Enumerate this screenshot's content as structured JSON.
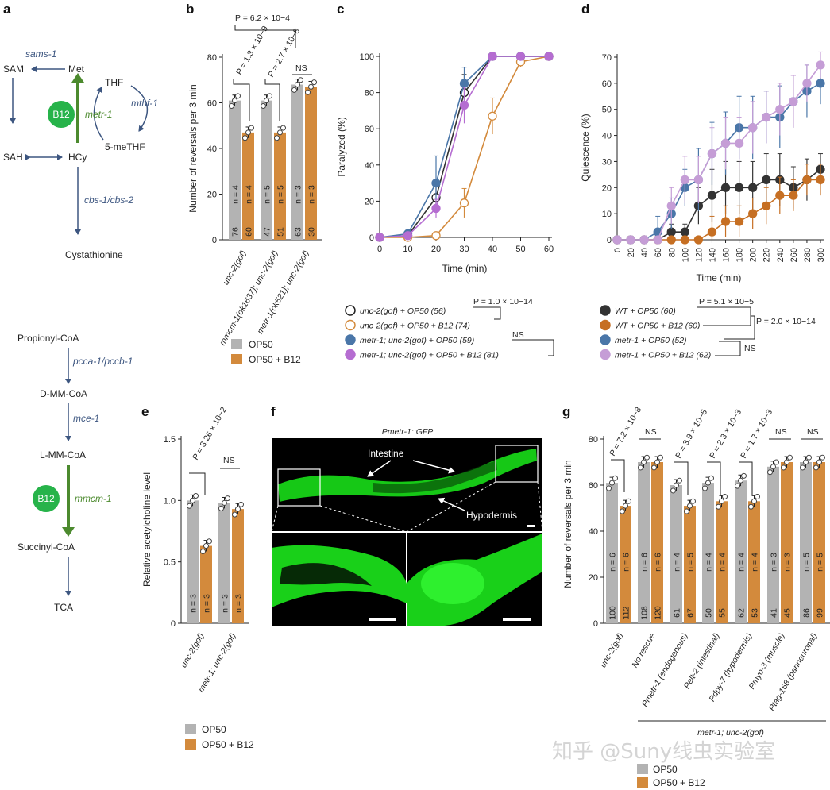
{
  "colors": {
    "grey": "#b3b3b3",
    "orange": "#d38a3c",
    "blue": "#4a76a8",
    "purple": "#b56dd1",
    "purple_light": "#c59dd6",
    "dark": "#333333",
    "green": "#27b34a",
    "arrow_green": "#4c8a2e",
    "arrow_blue": "#3d5680",
    "gfp": "#1ee61e"
  },
  "panel_a": {
    "letter": "a",
    "top": {
      "sams1": "sams-1",
      "sam": "SAM",
      "met": "Met",
      "thf": "THF",
      "mthf1": "mthf-1",
      "b12": "B12",
      "metr1": "metr-1",
      "sah": "SAH",
      "hcy": "HCy",
      "meTHF": "5-meTHF",
      "cbs": "cbs-1/cbs-2",
      "cystathionine": "Cystathionine"
    },
    "bottom": {
      "propionyl": "Propionyl-CoA",
      "pcca": "pcca-1/pccb-1",
      "dmm": "D-MM-CoA",
      "mce1": "mce-1",
      "lmm": "L-MM-CoA",
      "b12": "B12",
      "mmcm1": "mmcm-1",
      "succinyl": "Succinyl-CoA",
      "tca": "TCA"
    }
  },
  "panel_b": {
    "letter": "b",
    "ylabel": "Number of reversals per 3 min",
    "yticks": [
      "0",
      "20",
      "40",
      "60",
      "80"
    ],
    "p_top": "P = 6.2 × 10−4",
    "p1": "P = 1.3 × 10−9",
    "p2": "P = 2.7 × 10−8",
    "ns": "NS",
    "categories": [
      "unc-2(gof)",
      "mmcm-1(ok1637); unc-2(gof)",
      "metr-1(ok521); unc-2(gof)"
    ],
    "n_labels": [
      "n = 4",
      "n = 4",
      "n = 5",
      "n = 5",
      "n = 3",
      "n = 3"
    ],
    "counts": [
      "76",
      "60",
      "47",
      "51",
      "63",
      "30"
    ],
    "legend": [
      "OP50",
      "OP50 + B12"
    ]
  },
  "panel_c": {
    "letter": "c",
    "ylabel": "Paralyzed (%)",
    "xlabel": "Time (min)",
    "yticks": [
      "0",
      "20",
      "40",
      "60",
      "80",
      "100"
    ],
    "xticks": [
      "0",
      "10",
      "20",
      "30",
      "40",
      "50",
      "60"
    ],
    "legend": [
      "unc-2(gof) + OP50 (56)",
      "unc-2(gof) + OP50 + B12 (74)",
      "metr-1; unc-2(gof) + OP50 (59)",
      "metr-1; unc-2(gof) + OP50 + B12 (81)"
    ],
    "p": "P = 1.0 × 10−14",
    "ns": "NS"
  },
  "panel_d": {
    "letter": "d",
    "ylabel": "Quiescence (%)",
    "xlabel": "Time (min)",
    "yticks": [
      "0",
      "10",
      "20",
      "30",
      "40",
      "50",
      "60",
      "70"
    ],
    "xticks": [
      "0",
      "20",
      "40",
      "60",
      "80",
      "100",
      "120",
      "140",
      "160",
      "180",
      "200",
      "220",
      "240",
      "260",
      "280",
      "300"
    ],
    "legend": [
      "WT + OP50 (60)",
      "WT + OP50 + B12 (60)",
      "metr-1 + OP50 (52)",
      "metr-1 + OP50 + B12 (62)"
    ],
    "p1": "P = 5.1 × 10−5",
    "p2": "P = 2.0 × 10−14",
    "ns": "NS"
  },
  "panel_e": {
    "letter": "e",
    "ylabel": "Relative acetylcholine level",
    "yticks": [
      "0",
      "0.5",
      "1.0",
      "1.5"
    ],
    "p": "P = 3.26 × 10−2",
    "ns": "NS",
    "categories": [
      "unc-2(gof)",
      "metr-1; unc-2(gof)"
    ],
    "n_labels": [
      "n = 3",
      "n = 3",
      "n = 3",
      "n = 3"
    ],
    "legend": [
      "OP50",
      "OP50 + B12"
    ]
  },
  "panel_f": {
    "letter": "f",
    "title": "Pmetr-1::GFP",
    "intestine": "Intestine",
    "hypodermis": "Hypodermis"
  },
  "panel_g": {
    "letter": "g",
    "ylabel": "Number of reversals per 3 min",
    "yticks": [
      "0",
      "20",
      "40",
      "60",
      "80"
    ],
    "p1": "P = 7.2 × 10−8",
    "p2": "P = 3.9 × 10−5",
    "p3": "P = 2.3 × 10−3",
    "p4": "P = 1.7 × 10−3",
    "ns": "NS",
    "categories": [
      "unc-2(gof)",
      "No rescue",
      "Pmetr-1 (endogenous)",
      "Pelt-2 (intestinal)",
      "Pdpy-7 (hypodermis)",
      "Pmyo-3 (muscle)",
      "Ptag-168 (panneuronal)"
    ],
    "n_labels": [
      "n = 6",
      "n = 6",
      "n = 6",
      "n = 6",
      "n = 4",
      "n = 5",
      "n = 4",
      "n = 4",
      "n = 4",
      "n = 4",
      "n = 3",
      "n = 3",
      "n = 5",
      "n = 5"
    ],
    "counts": [
      "100",
      "112",
      "108",
      "120",
      "61",
      "67",
      "50",
      "55",
      "62",
      "53",
      "41",
      "45",
      "86",
      "99"
    ],
    "group_label": "metr-1; unc-2(gof)",
    "legend": [
      "OP50",
      "OP50 + B12"
    ]
  },
  "watermark": "知乎 @Suny线虫实验室",
  "chart_data": [
    {
      "panel": "b",
      "type": "bar",
      "ylabel": "Number of reversals per 3 min",
      "ylim": [
        0,
        80
      ],
      "categories": [
        "unc-2(gof)",
        "mmcm-1(ok1637); unc-2(gof)",
        "metr-1(ok521); unc-2(gof)"
      ],
      "series": [
        {
          "name": "OP50",
          "values": [
            61,
            61,
            68
          ]
        },
        {
          "name": "OP50 + B12",
          "values": [
            47,
            47,
            67
          ]
        }
      ]
    },
    {
      "panel": "c",
      "type": "line",
      "xlabel": "Time (min)",
      "ylabel": "Paralyzed (%)",
      "xlim": [
        0,
        60
      ],
      "ylim": [
        0,
        100
      ],
      "x": [
        0,
        10,
        20,
        30,
        40,
        50,
        60
      ],
      "series": [
        {
          "name": "unc-2(gof) + OP50 (56)",
          "values": [
            0,
            1,
            22,
            80,
            100,
            100,
            100
          ],
          "err": [
            0,
            1,
            8,
            10,
            0,
            0,
            0
          ]
        },
        {
          "name": "unc-2(gof) + OP50 + B12 (74)",
          "values": [
            0,
            0,
            1,
            19,
            67,
            97,
            100
          ],
          "err": [
            0,
            0,
            2,
            8,
            10,
            3,
            0
          ]
        },
        {
          "name": "metr-1; unc-2(gof) + OP50 (59)",
          "values": [
            0,
            2,
            30,
            85,
            100,
            100,
            100
          ],
          "err": [
            0,
            2,
            15,
            9,
            2,
            0,
            0
          ]
        },
        {
          "name": "metr-1; unc-2(gof) + OP50 + B12 (81)",
          "values": [
            0,
            1,
            16,
            73,
            100,
            100,
            100
          ],
          "err": [
            0,
            1,
            5,
            10,
            2,
            0,
            0
          ]
        }
      ]
    },
    {
      "panel": "d",
      "type": "line",
      "xlabel": "Time (min)",
      "ylabel": "Quiescence (%)",
      "xlim": [
        0,
        300
      ],
      "ylim": [
        0,
        70
      ],
      "x": [
        0,
        20,
        40,
        60,
        80,
        100,
        120,
        140,
        160,
        180,
        200,
        220,
        240,
        260,
        280,
        300
      ],
      "series": [
        {
          "name": "WT + OP50 (60)",
          "values": [
            0,
            0,
            0,
            0,
            3,
            3,
            13,
            17,
            20,
            20,
            20,
            23,
            23,
            20,
            23,
            27
          ],
          "err": [
            0,
            0,
            0,
            0,
            3,
            3,
            7,
            10,
            10,
            10,
            10,
            10,
            10,
            8,
            8,
            6
          ]
        },
        {
          "name": "WT + OP50 + B12 (60)",
          "values": [
            0,
            0,
            0,
            0,
            0,
            0,
            0,
            3,
            7,
            7,
            10,
            13,
            17,
            17,
            23,
            23
          ],
          "err": [
            0,
            0,
            0,
            0,
            0,
            0,
            0,
            6,
            6,
            6,
            6,
            7,
            7,
            6,
            6,
            6
          ]
        },
        {
          "name": "metr-1 + OP50 (52)",
          "values": [
            0,
            0,
            0,
            3,
            10,
            20,
            23,
            33,
            37,
            43,
            43,
            47,
            47,
            53,
            57,
            60
          ],
          "err": [
            0,
            0,
            0,
            6,
            6,
            7,
            12,
            12,
            12,
            12,
            12,
            10,
            12,
            10,
            10,
            8
          ]
        },
        {
          "name": "metr-1 + OP50 + B12 (62)",
          "values": [
            0,
            0,
            0,
            0,
            13,
            23,
            23,
            33,
            37,
            37,
            43,
            47,
            50,
            53,
            60,
            67
          ],
          "err": [
            0,
            0,
            0,
            0,
            7,
            9,
            9,
            10,
            10,
            10,
            10,
            10,
            10,
            10,
            7,
            5
          ]
        }
      ]
    },
    {
      "panel": "e",
      "type": "bar",
      "ylabel": "Relative acetylcholine level",
      "ylim": [
        0,
        1.5
      ],
      "categories": [
        "unc-2(gof)",
        "metr-1; unc-2(gof)"
      ],
      "series": [
        {
          "name": "OP50",
          "values": [
            1.0,
            0.98
          ]
        },
        {
          "name": "OP50 + B12",
          "values": [
            0.63,
            0.93
          ]
        }
      ]
    },
    {
      "panel": "g",
      "type": "bar",
      "ylabel": "Number of reversals per 3 min",
      "ylim": [
        0,
        80
      ],
      "categories": [
        "unc-2(gof)",
        "No rescue",
        "Pmetr-1 (endogenous)",
        "Pelt-2 (intestinal)",
        "Pdpy-7 (hypodermis)",
        "Pmyo-3 (muscle)",
        "Ptag-168 (panneuronal)"
      ],
      "series": [
        {
          "name": "OP50",
          "values": [
            61,
            70,
            60,
            61,
            62,
            68,
            70
          ]
        },
        {
          "name": "OP50 + B12",
          "values": [
            51,
            70,
            51,
            53,
            53,
            70,
            70
          ]
        }
      ]
    }
  ]
}
